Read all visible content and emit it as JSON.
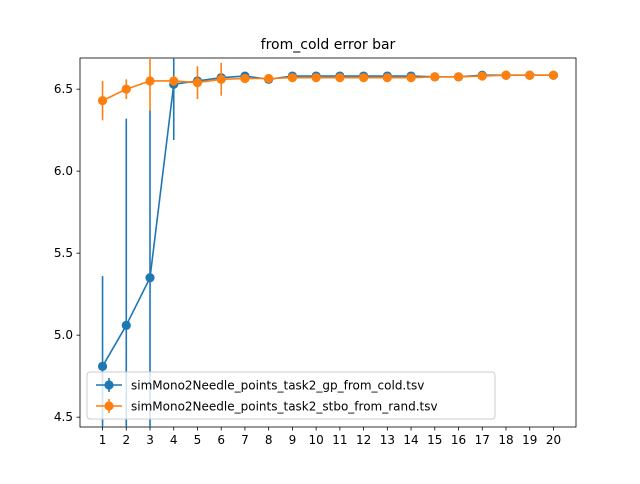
{
  "chart_data": {
    "type": "line",
    "title": "from_cold error bar",
    "xlabel": "",
    "ylabel": "",
    "x": [
      1,
      2,
      3,
      4,
      5,
      6,
      7,
      8,
      9,
      10,
      11,
      12,
      13,
      14,
      15,
      16,
      17,
      18,
      19,
      20
    ],
    "xticks": [
      1,
      2,
      3,
      4,
      5,
      6,
      7,
      8,
      9,
      10,
      11,
      12,
      13,
      14,
      15,
      16,
      17,
      18,
      19,
      20
    ],
    "yticks": [
      4.5,
      5.0,
      5.5,
      6.0,
      6.5
    ],
    "ytick_labels": [
      "4.5",
      "5.0",
      "5.5",
      "6.0",
      "6.5"
    ],
    "xlim": [
      0.05,
      20.95
    ],
    "ylim": [
      4.44,
      6.69
    ],
    "grid": false,
    "legend_position": "lower-left",
    "series": [
      {
        "name": "simMono2Needle_points_task2_gp_from_cold.tsv",
        "color": "#1f77b4",
        "values": [
          4.81,
          5.06,
          5.35,
          6.53,
          6.55,
          6.57,
          6.58,
          6.56,
          6.58,
          6.58,
          6.58,
          6.58,
          6.58,
          6.58,
          6.575,
          6.575,
          6.585,
          6.585,
          6.585,
          6.585
        ],
        "err": [
          0.55,
          1.26,
          1.02,
          0.34,
          0.03,
          0.01,
          0.01,
          0.01,
          0.01,
          0.01,
          0.01,
          0.01,
          0.01,
          0.01,
          0.005,
          0.005,
          0.005,
          0.005,
          0.005,
          0.005
        ]
      },
      {
        "name": "simMono2Needle_points_task2_stbo_from_rand.tsv",
        "color": "#ff7f0e",
        "values": [
          6.43,
          6.5,
          6.55,
          6.55,
          6.54,
          6.56,
          6.565,
          6.565,
          6.57,
          6.57,
          6.57,
          6.57,
          6.57,
          6.57,
          6.575,
          6.575,
          6.58,
          6.585,
          6.585,
          6.585
        ],
        "err": [
          0.12,
          0.06,
          0.18,
          0.03,
          0.1,
          0.1,
          0.01,
          0.01,
          0.01,
          0.01,
          0.01,
          0.01,
          0.01,
          0.01,
          0.005,
          0.005,
          0.005,
          0.005,
          0.005,
          0.005
        ]
      }
    ]
  }
}
